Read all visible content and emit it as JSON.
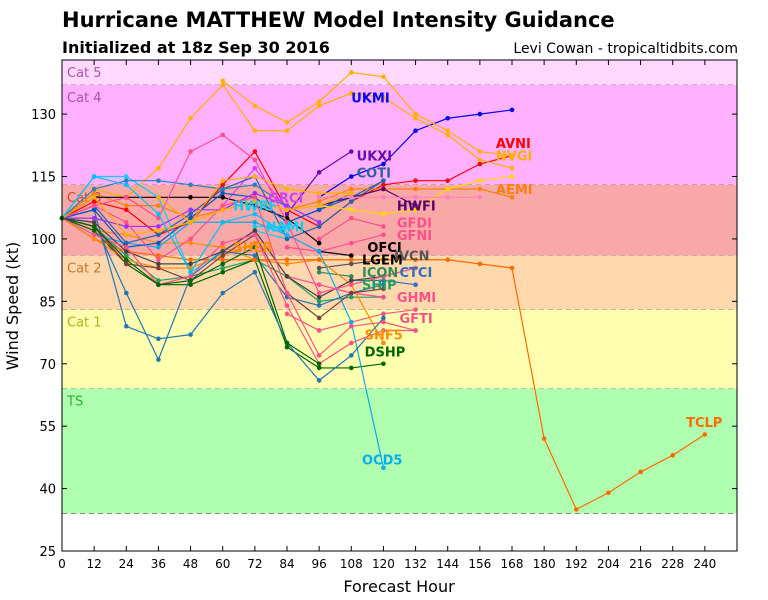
{
  "header": {
    "title": "Hurricane MATTHEW Model Intensity Guidance",
    "subtitle": "Initialized at 18z Sep 30 2016",
    "credit": "Levi Cowan - tropicaltidbits.com"
  },
  "chart_data": {
    "type": "line",
    "xlabel": "Forecast Hour",
    "ylabel": "Wind Speed (kt)",
    "xlim": [
      0,
      252
    ],
    "ylim": [
      25,
      143
    ],
    "xticks": [
      0,
      12,
      24,
      36,
      48,
      60,
      72,
      84,
      96,
      108,
      120,
      132,
      144,
      156,
      168,
      180,
      192,
      204,
      216,
      228,
      240
    ],
    "yticks": [
      25,
      40,
      55,
      70,
      85,
      100,
      115,
      130
    ],
    "bands": [
      {
        "label": "Cat 5",
        "from": 137,
        "to": 143,
        "fill": "#ffd9ff",
        "color": "#b050b0"
      },
      {
        "label": "Cat 4",
        "from": 113,
        "to": 137,
        "fill": "#ffb0ff",
        "color": "#b050b0"
      },
      {
        "label": "Cat 3",
        "from": 96,
        "to": 113,
        "fill": "#f9a8a8",
        "color": "#cc4a30"
      },
      {
        "label": "Cat 2",
        "from": 83,
        "to": 96,
        "fill": "#ffd9ad",
        "color": "#c07a30"
      },
      {
        "label": "Cat 1",
        "from": 64,
        "to": 83,
        "fill": "#ffffaf",
        "color": "#b0b020"
      },
      {
        "label": "TS",
        "from": 34,
        "to": 64,
        "fill": "#b0ffb0",
        "color": "#30b030"
      }
    ],
    "series": [
      {
        "name": "UKMI",
        "color": "#0000ff",
        "x": [
          96,
          108,
          120,
          132,
          144,
          156,
          168
        ],
        "y": [
          110,
          115,
          118,
          126,
          129,
          130,
          131
        ],
        "label_at": [
          108,
          134
        ]
      },
      {
        "name": "AVNI",
        "color": "#ff0000",
        "x": [
          0,
          12,
          24,
          36,
          48,
          60,
          72,
          84,
          96,
          108,
          120,
          132,
          144,
          156,
          168
        ],
        "y": [
          105,
          109,
          107,
          101,
          104,
          113,
          121,
          107,
          103,
          109,
          113,
          114,
          114,
          118,
          120
        ],
        "label_at": [
          162,
          123
        ]
      },
      {
        "name": "NVGI",
        "color": "#ffb000",
        "x": [
          0,
          12,
          24,
          36,
          48,
          60,
          72,
          84,
          96,
          108,
          120,
          132,
          144,
          156,
          168
        ],
        "y": [
          105,
          112,
          110,
          117,
          129,
          137,
          126,
          126,
          132,
          135,
          134,
          129,
          125,
          119,
          117
        ],
        "label_at": [
          162,
          120
        ]
      },
      {
        "name": "UKXI",
        "color": "#6a0dad",
        "x": [
          84,
          96,
          108
        ],
        "y": [
          106,
          116,
          121
        ],
        "label_at": [
          110,
          120
        ]
      },
      {
        "name": "COTI",
        "color": "#3060a0",
        "x": [
          84,
          96,
          108,
          120
        ],
        "y": [
          104,
          107,
          110,
          114
        ],
        "label_at": [
          110,
          116
        ]
      },
      {
        "name": "AEMI",
        "color": "#ff7f0e",
        "x": [
          0,
          12,
          24,
          36,
          48,
          60,
          72,
          84,
          96,
          108,
          120,
          132,
          144,
          156,
          168
        ],
        "y": [
          105,
          111,
          108,
          108,
          105,
          107,
          109,
          107,
          109,
          112,
          112,
          112,
          112,
          112,
          110
        ],
        "label_at": [
          162,
          112
        ]
      },
      {
        "name": "HWFI",
        "color": "#5a0075",
        "x": [
          96,
          108,
          120,
          132
        ],
        "y": [
          108,
          110,
          112,
          108
        ],
        "label_at": [
          125,
          108
        ]
      },
      {
        "name": "GFDI",
        "color": "#ff4f8b",
        "x": [
          96,
          108,
          120
        ],
        "y": [
          100,
          105,
          103
        ],
        "label_at": [
          125,
          104
        ]
      },
      {
        "name": "GFNI",
        "color": "#ff4f8b",
        "x": [
          84,
          96,
          108,
          120
        ],
        "y": [
          98,
          97,
          99,
          101
        ],
        "label_at": [
          125,
          101
        ]
      },
      {
        "name": "OFCI",
        "color": "#000000",
        "x": [
          0,
          12,
          24,
          36,
          48,
          60,
          72,
          84,
          96
        ],
        "y": [
          105,
          110,
          110,
          110,
          110,
          110,
          108,
          105,
          99
        ],
        "label_at": [
          114,
          98
        ]
      },
      {
        "name": "LGEM",
        "color": "#000000",
        "x": [
          96,
          108
        ],
        "y": [
          97,
          96
        ],
        "label_at": [
          112,
          95
        ]
      },
      {
        "name": "IVCN",
        "color": "#555555",
        "x": [
          96,
          108,
          120
        ],
        "y": [
          93,
          94,
          95
        ],
        "label_at": [
          124,
          96
        ]
      },
      {
        "name": "ICON",
        "color": "#2e8b57",
        "x": [
          96,
          108
        ],
        "y": [
          92,
          91
        ],
        "label_at": [
          112,
          92
        ]
      },
      {
        "name": "CTCI",
        "color": "#3070c0",
        "x": [
          108,
          120,
          132
        ],
        "y": [
          90,
          90,
          89
        ],
        "label_at": [
          126,
          92
        ]
      },
      {
        "name": "SHIP",
        "color": "#20a060",
        "x": [
          0,
          12,
          24,
          36,
          48,
          60,
          72,
          84,
          96,
          108,
          120
        ],
        "y": [
          105,
          103,
          96,
          90,
          91,
          93,
          95,
          91,
          85,
          86,
          86
        ],
        "label_at": [
          112,
          89
        ]
      },
      {
        "name": "GHMI",
        "color": "#ff4f8b",
        "x": [
          84,
          96,
          108,
          120
        ],
        "y": [
          91,
          89,
          87,
          86
        ],
        "label_at": [
          125,
          86
        ]
      },
      {
        "name": "GFTI",
        "color": "#ff4f8b",
        "x": [
          84,
          96,
          108,
          120,
          132
        ],
        "y": [
          82,
          78,
          80,
          82,
          83
        ],
        "label_at": [
          126,
          81
        ]
      },
      {
        "name": "SHF5",
        "color": "#ff8c00",
        "x": [
          0,
          12,
          24,
          36,
          48,
          60,
          72,
          84,
          96,
          108,
          120
        ],
        "y": [
          105,
          102,
          101,
          99,
          99,
          98,
          95,
          94,
          95,
          89,
          75
        ],
        "label_at": [
          113,
          77
        ]
      },
      {
        "name": "DSHP",
        "color": "#006400",
        "x": [
          0,
          12,
          24,
          36,
          48,
          60,
          72,
          84,
          96,
          108,
          120
        ],
        "y": [
          105,
          102,
          94,
          89,
          89,
          92,
          95,
          74,
          69,
          69,
          70
        ],
        "label_at": [
          113,
          73
        ]
      },
      {
        "name": "OCD5",
        "color": "#0aaaee",
        "x": [
          0,
          12,
          24,
          36,
          48,
          60,
          72,
          84,
          96,
          108,
          120
        ],
        "y": [
          105,
          101,
          99,
          98,
          104,
          104,
          104,
          101,
          97,
          80,
          45
        ],
        "label_at": [
          112,
          47
        ]
      },
      {
        "name": "TCLP",
        "color": "#ff6a00",
        "x": [
          0,
          12,
          24,
          36,
          48,
          60,
          72,
          84,
          96,
          108,
          120,
          132,
          144,
          156,
          168,
          180,
          192,
          204,
          216,
          228,
          240
        ],
        "y": [
          105,
          100,
          97,
          96,
          95,
          95,
          95,
          95,
          95,
          95,
          95,
          95,
          95,
          94,
          93,
          52,
          35,
          39,
          44,
          48,
          53
        ],
        "label_at": [
          233,
          56
        ]
      },
      {
        "name": "HWRF",
        "color": "#00d0ff",
        "x": [
          0,
          12,
          24,
          36,
          48,
          60,
          72,
          84
        ],
        "y": [
          105,
          115,
          115,
          110,
          92,
          97,
          102,
          100
        ],
        "label_at": [
          64,
          108
        ]
      },
      {
        "name": "NAMI",
        "color": "#00d0ff",
        "x": [
          72,
          84
        ],
        "y": [
          103,
          103
        ],
        "label_at": [
          76,
          103
        ]
      },
      {
        "name": "SHER",
        "color": "#ff8c00",
        "x": [
          0,
          12,
          24,
          36,
          48,
          60,
          72
        ],
        "y": [
          105,
          100,
          95,
          93,
          93,
          96,
          99
        ],
        "label_at": [
          64,
          98
        ]
      },
      {
        "name": "GRCI",
        "color": "#d040ff",
        "x": [
          60,
          72,
          84
        ],
        "y": [
          108,
          117,
          107
        ],
        "label_at": [
          77,
          110
        ]
      },
      {
        "name": "",
        "color": "#1f77b4",
        "x": [
          0,
          12,
          24,
          36,
          48,
          60,
          72,
          84,
          96,
          108,
          120
        ],
        "y": [
          105,
          107,
          79,
          76,
          77,
          87,
          92,
          75,
          66,
          72,
          81
        ],
        "label_at": null
      },
      {
        "name": "",
        "color": "#1f77b4",
        "x": [
          0,
          12,
          24,
          36,
          48,
          60,
          72,
          84,
          96,
          108,
          120
        ],
        "y": [
          105,
          104,
          87,
          71,
          91,
          97,
          96,
          86,
          84,
          87,
          89
        ],
        "label_at": null
      },
      {
        "name": "",
        "color": "#2266aa",
        "x": [
          0,
          12,
          24,
          36,
          48,
          60,
          72,
          84,
          96,
          108,
          120
        ],
        "y": [
          105,
          108,
          99,
          101,
          106,
          112,
          115,
          100,
          103,
          109,
          114
        ],
        "label_at": null
      },
      {
        "name": "",
        "color": "#0055cc",
        "x": [
          0,
          12,
          24,
          36,
          48,
          60,
          72,
          84,
          96,
          108
        ],
        "y": [
          105,
          107,
          98,
          99,
          105,
          111,
          110,
          104,
          107,
          111
        ],
        "label_at": null
      },
      {
        "name": "",
        "color": "#2c7fb8",
        "x": [
          0,
          12,
          24,
          36,
          48,
          60,
          72,
          84,
          96
        ],
        "y": [
          105,
          112,
          114,
          114,
          113,
          112,
          113,
          108,
          104
        ],
        "label_at": null
      },
      {
        "name": "",
        "color": "#7f3f3f",
        "x": [
          0,
          12,
          24,
          36,
          48,
          60,
          72,
          84,
          96,
          108,
          120
        ],
        "y": [
          105,
          103,
          94,
          93,
          90,
          96,
          101,
          87,
          81,
          87,
          88
        ],
        "label_at": null
      },
      {
        "name": "",
        "color": "#444444",
        "x": [
          0,
          12,
          24,
          36,
          48,
          60,
          72,
          84,
          96,
          108,
          120
        ],
        "y": [
          105,
          104,
          97,
          94,
          94,
          97,
          102,
          91,
          86,
          90,
          91
        ],
        "label_at": null
      },
      {
        "name": "",
        "color": "#9b30ff",
        "x": [
          0,
          12,
          24,
          36,
          48,
          60,
          72,
          84,
          96
        ],
        "y": [
          105,
          105,
          103,
          103,
          107,
          107,
          111,
          108,
          104
        ],
        "label_at": null
      },
      {
        "name": "",
        "color": "#ff4f8b",
        "x": [
          0,
          12,
          24,
          36,
          48,
          60,
          72,
          84,
          96,
          108,
          120,
          132
        ],
        "y": [
          105,
          108,
          110,
          105,
          121,
          125,
          119,
          104,
          87,
          89,
          91,
          93
        ],
        "label_at": null
      },
      {
        "name": "",
        "color": "#ff4f8b",
        "x": [
          0,
          12,
          24,
          36,
          48,
          60,
          72,
          84,
          96,
          108,
          120,
          132
        ],
        "y": [
          105,
          108,
          104,
          95,
          100,
          108,
          110,
          87,
          72,
          79,
          80,
          78
        ],
        "label_at": null
      },
      {
        "name": "",
        "color": "#ff4f8b",
        "x": [
          0,
          12,
          24,
          36,
          48,
          60,
          72,
          84,
          96,
          108,
          120,
          132
        ],
        "y": [
          105,
          101,
          98,
          89,
          91,
          99,
          101,
          84,
          70,
          75,
          78,
          78
        ],
        "label_at": null
      },
      {
        "name": "",
        "color": "#ffd700",
        "x": [
          96,
          108,
          120,
          132,
          144,
          156,
          168
        ],
        "y": [
          108,
          107,
          106,
          107,
          112,
          114,
          115
        ],
        "label_at": null
      },
      {
        "name": "",
        "color": "#ffb000",
        "x": [
          60,
          72,
          84,
          96,
          108,
          120,
          132,
          144,
          156,
          168
        ],
        "y": [
          138,
          132,
          128,
          133,
          140,
          139,
          130,
          126,
          121,
          120
        ],
        "label_at": null
      },
      {
        "name": "",
        "color": "#ffb000",
        "x": [
          36,
          48,
          60,
          72,
          84,
          96,
          108
        ],
        "y": [
          110,
          104,
          114,
          115,
          112,
          111,
          111
        ],
        "label_at": null
      },
      {
        "name": "",
        "color": "#ffb000",
        "x": [
          0,
          12,
          24,
          36,
          48,
          60,
          72,
          84,
          96,
          108
        ],
        "y": [
          105,
          110,
          101,
          102,
          104,
          107,
          109,
          107,
          108,
          111
        ],
        "label_at": null
      },
      {
        "name": "",
        "color": "#ff80c0",
        "x": [
          96,
          108,
          120,
          132,
          144,
          156
        ],
        "y": [
          110,
          110,
          110,
          110,
          110,
          110
        ],
        "label_at": null
      },
      {
        "name": "",
        "color": "#00bfff",
        "x": [
          0,
          12,
          24,
          36,
          48,
          60,
          72,
          84
        ],
        "y": [
          105,
          115,
          113,
          106,
          92,
          104,
          106,
          101
        ],
        "label_at": null
      },
      {
        "name": "",
        "color": "#006400",
        "x": [
          0,
          12,
          24,
          36,
          48,
          60,
          72,
          84,
          96
        ],
        "y": [
          105,
          103,
          95,
          89,
          90,
          94,
          98,
          75,
          70
        ],
        "label_at": null
      }
    ]
  }
}
